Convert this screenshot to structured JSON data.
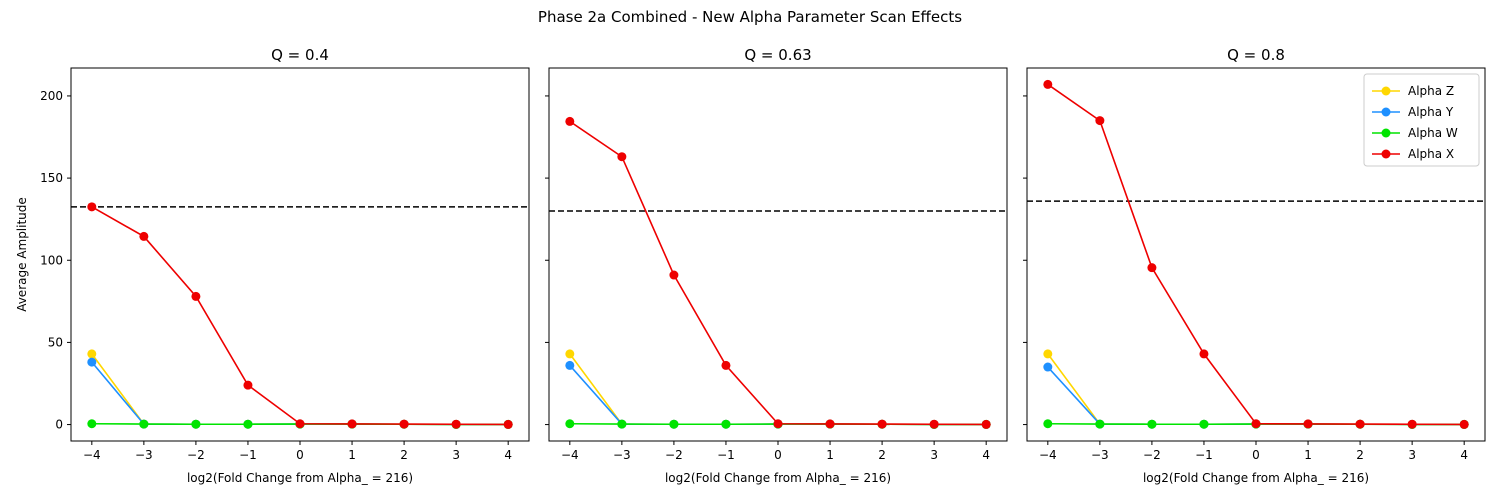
{
  "figure": {
    "title": "Phase 2a Combined - New Alpha Parameter Scan Effects"
  },
  "chart_data": [
    {
      "type": "line",
      "title": "Q = 0.4",
      "xlabel": "log2(Fold Change from Alpha_ = 216)",
      "ylabel": "Average Amplitude",
      "x": [
        -4,
        -3,
        -2,
        -1,
        0,
        1,
        2,
        3,
        4
      ],
      "xlim": [
        -4.4,
        4.4
      ],
      "ylim": [
        -10,
        217
      ],
      "xticks": [
        -4,
        -3,
        -2,
        -1,
        0,
        1,
        2,
        3,
        4
      ],
      "yticks": [
        0,
        50,
        100,
        150,
        200
      ],
      "reference_line": {
        "y": 132.5,
        "style": "dashed",
        "color": "#000000"
      },
      "series": [
        {
          "name": "Alpha Z",
          "color": "#FFD700",
          "values": [
            43,
            0.3,
            0.2,
            0.2,
            0.3,
            0.3,
            0.2,
            0.1,
            0.1
          ]
        },
        {
          "name": "Alpha Y",
          "color": "#1E90FF",
          "values": [
            38,
            0.3,
            0.2,
            0.2,
            0.3,
            0.3,
            0.2,
            0.1,
            0.1
          ]
        },
        {
          "name": "Alpha W",
          "color": "#00E400",
          "values": [
            0.5,
            0.3,
            0.2,
            0.2,
            0.3,
            0.3,
            0.2,
            0.1,
            0.1
          ]
        },
        {
          "name": "Alpha X",
          "color": "#EE0000",
          "values": [
            132.5,
            114.5,
            78,
            24,
            0.5,
            0.4,
            0.3,
            0.2,
            0.1
          ]
        }
      ],
      "legend": false
    },
    {
      "type": "line",
      "title": "Q = 0.63",
      "xlabel": "log2(Fold Change from Alpha_ = 216)",
      "ylabel": "",
      "x": [
        -4,
        -3,
        -2,
        -1,
        0,
        1,
        2,
        3,
        4
      ],
      "xlim": [
        -4.4,
        4.4
      ],
      "ylim": [
        -10,
        217
      ],
      "xticks": [
        -4,
        -3,
        -2,
        -1,
        0,
        1,
        2,
        3,
        4
      ],
      "yticks": [
        0,
        50,
        100,
        150,
        200
      ],
      "show_ytick_labels": false,
      "reference_line": {
        "y": 130,
        "style": "dashed",
        "color": "#000000"
      },
      "series": [
        {
          "name": "Alpha Z",
          "color": "#FFD700",
          "values": [
            43,
            0.3,
            0.2,
            0.2,
            0.3,
            0.3,
            0.2,
            0.1,
            0.1
          ]
        },
        {
          "name": "Alpha Y",
          "color": "#1E90FF",
          "values": [
            36,
            0.3,
            0.2,
            0.2,
            0.3,
            0.3,
            0.2,
            0.1,
            0.1
          ]
        },
        {
          "name": "Alpha W",
          "color": "#00E400",
          "values": [
            0.5,
            0.3,
            0.2,
            0.2,
            0.3,
            0.3,
            0.2,
            0.1,
            0.1
          ]
        },
        {
          "name": "Alpha X",
          "color": "#EE0000",
          "values": [
            184.5,
            163,
            91,
            36,
            0.5,
            0.4,
            0.3,
            0.2,
            0.1
          ]
        }
      ],
      "legend": false
    },
    {
      "type": "line",
      "title": "Q = 0.8",
      "xlabel": "log2(Fold Change from Alpha_ = 216)",
      "ylabel": "",
      "x": [
        -4,
        -3,
        -2,
        -1,
        0,
        1,
        2,
        3,
        4
      ],
      "xlim": [
        -4.4,
        4.4
      ],
      "ylim": [
        -10,
        217
      ],
      "xticks": [
        -4,
        -3,
        -2,
        -1,
        0,
        1,
        2,
        3,
        4
      ],
      "yticks": [
        0,
        50,
        100,
        150,
        200
      ],
      "show_ytick_labels": false,
      "reference_line": {
        "y": 136,
        "style": "dashed",
        "color": "#000000"
      },
      "series": [
        {
          "name": "Alpha Z",
          "color": "#FFD700",
          "values": [
            43,
            0.3,
            0.2,
            0.2,
            0.3,
            0.3,
            0.2,
            0.1,
            0.1
          ]
        },
        {
          "name": "Alpha Y",
          "color": "#1E90FF",
          "values": [
            35,
            0.3,
            0.2,
            0.2,
            0.3,
            0.3,
            0.2,
            0.1,
            0.1
          ]
        },
        {
          "name": "Alpha W",
          "color": "#00E400",
          "values": [
            0.5,
            0.3,
            0.2,
            0.2,
            0.3,
            0.3,
            0.2,
            0.1,
            0.1
          ]
        },
        {
          "name": "Alpha X",
          "color": "#EE0000",
          "values": [
            207,
            185,
            95.5,
            43,
            0.5,
            0.4,
            0.3,
            0.2,
            0.1
          ]
        }
      ],
      "legend": true,
      "legend_placement": "top-right"
    }
  ]
}
